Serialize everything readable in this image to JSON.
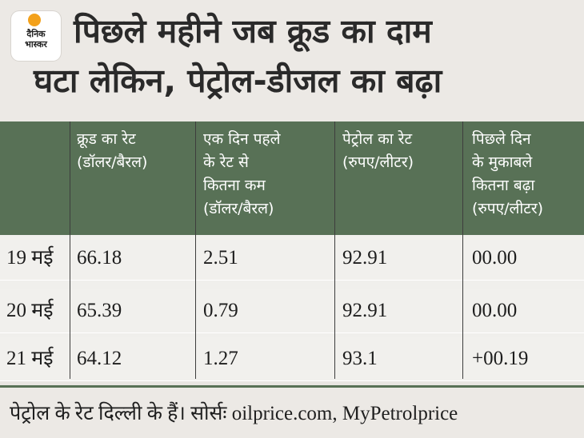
{
  "brand": {
    "logo_text": "दैनिक भास्कर",
    "accent": "#f3a11b"
  },
  "title": {
    "line1": "पिछले महीने जब क्रूड का दाम",
    "line2": "घटा लेकिन, पेट्रोल-डीजल का बढ़ा"
  },
  "colors": {
    "header_bar": "#587156",
    "background": "#ece9e5"
  },
  "table": {
    "headers": [
      "",
      "क्रूड का रेट\n(डॉलर/बैरल)",
      "एक दिन पहले\nके रेट से\nकितना कम\n(डॉलर/बैरल)",
      "पेट्रोल का रेट\n(रुपए/लीटर)",
      "पिछले दिन\nके मुकाबले\nकितना बढ़ा\n(रुपए/लीटर)"
    ],
    "rows": [
      {
        "date": "19 मई",
        "crude": "66.18",
        "drop": "2.51",
        "petrol": "92.91",
        "rise": "00.00"
      },
      {
        "date": "20 मई",
        "crude": "65.39",
        "drop": "0.79",
        "petrol": "92.91",
        "rise": "00.00"
      },
      {
        "date": "21 मई",
        "crude": "64.12",
        "drop": "1.27",
        "petrol": "93.1",
        "rise": "+00.19"
      }
    ]
  },
  "footnote": "पेट्रोल के रेट दिल्ली के हैं। सोर्सः oilprice.com, MyPetrolprice"
}
